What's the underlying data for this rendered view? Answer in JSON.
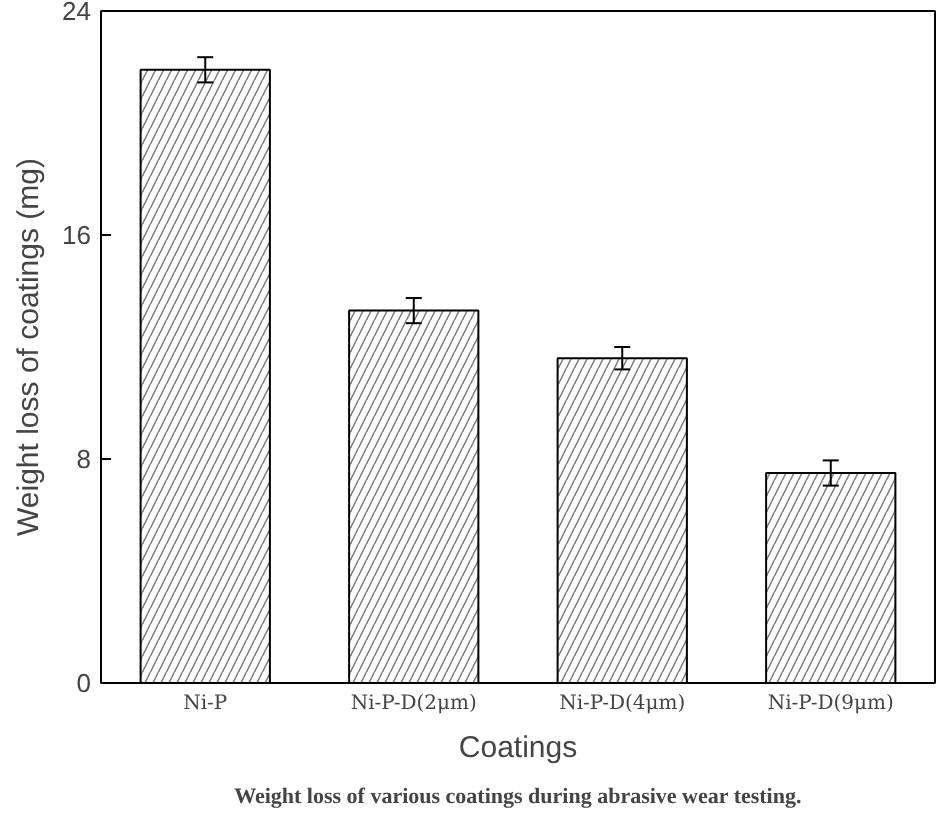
{
  "chart_data": {
    "type": "bar",
    "categories": [
      "Ni-P",
      "Ni-P-D(2μm)",
      "Ni-P-D(4μm)",
      "Ni-P-D(9μm)"
    ],
    "values": [
      21.9,
      13.3,
      11.6,
      7.5
    ],
    "errors": [
      0.45,
      0.45,
      0.4,
      0.45
    ],
    "color": "#ffffff",
    "xlabel": "Coatings",
    "ylabel": "Weight loss of coatings (mg)",
    "ylim": [
      0,
      24
    ],
    "yticks": [
      0,
      8,
      16,
      24
    ],
    "grid": false,
    "annotations": [
      "Weight loss of various coatings during abrasive wear testing."
    ]
  }
}
